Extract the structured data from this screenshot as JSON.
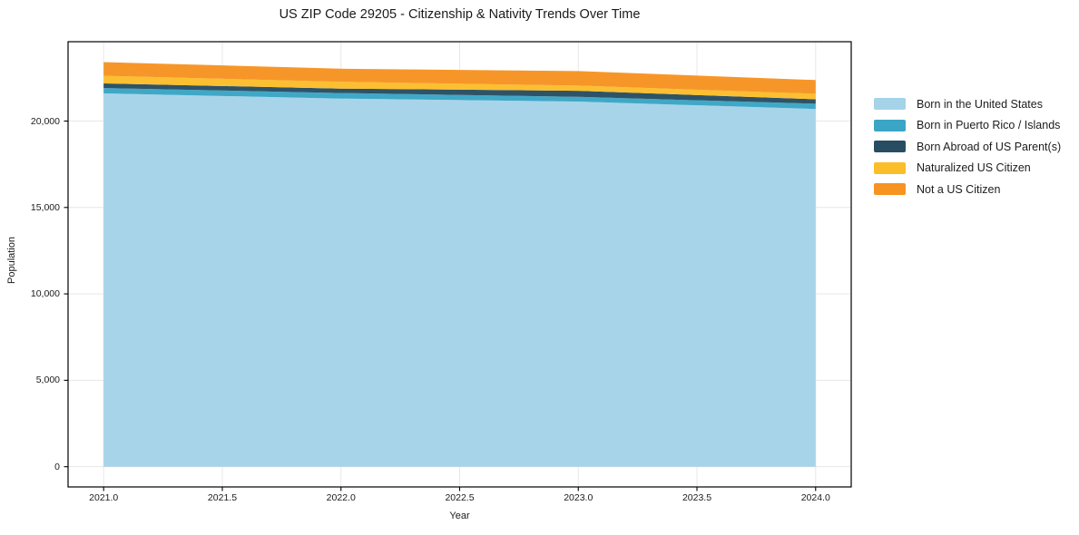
{
  "title": "US ZIP Code 29205 - Citizenship & Nativity Trends Over Time",
  "theme": {
    "background": "#ffffff",
    "grid_color": "#e7e7e7",
    "spine_color": "#000000",
    "tick_color": "#000000",
    "text_color": "#1a1a1a"
  },
  "chart_data": {
    "type": "area",
    "stacked": true,
    "title": "US ZIP Code 29205 - Citizenship & Nativity Trends Over Time",
    "xlabel": "Year",
    "ylabel": "Population",
    "x": [
      2021,
      2022,
      2023,
      2024
    ],
    "series": [
      {
        "name": "Born in the United States",
        "color": "#a5d3e8",
        "values": [
          21600,
          21300,
          21130,
          20700
        ]
      },
      {
        "name": "Born in Puerto Rico / Islands",
        "color": "#3aa5c5",
        "values": [
          310,
          320,
          270,
          300
        ]
      },
      {
        "name": "Born Abroad of US Parent(s)",
        "color": "#274d62",
        "values": [
          270,
          260,
          350,
          260
        ]
      },
      {
        "name": "Naturalized US Citizen",
        "color": "#fcbd2a",
        "values": [
          440,
          390,
          300,
          320
        ]
      },
      {
        "name": "Not a US Citizen",
        "color": "#f79321",
        "values": [
          790,
          760,
          840,
          790
        ]
      }
    ],
    "totals": [
      23410,
      23030,
      22890,
      22370
    ],
    "xlim": [
      2020.85,
      2024.15
    ],
    "ylim": [
      -1171,
      24591
    ],
    "xticks": [
      {
        "value": 2021.0,
        "label": "2021.0"
      },
      {
        "value": 2021.5,
        "label": "2021.5"
      },
      {
        "value": 2022.0,
        "label": "2022.0"
      },
      {
        "value": 2022.5,
        "label": "2022.5"
      },
      {
        "value": 2023.0,
        "label": "2023.0"
      },
      {
        "value": 2023.5,
        "label": "2023.5"
      },
      {
        "value": 2024.0,
        "label": "2024.0"
      }
    ],
    "yticks": [
      {
        "value": 0,
        "label": "0"
      },
      {
        "value": 5000,
        "label": "5,000"
      },
      {
        "value": 10000,
        "label": "10,000"
      },
      {
        "value": 15000,
        "label": "15,000"
      },
      {
        "value": 20000,
        "label": "20,000"
      }
    ],
    "grid": true,
    "legend_position": "right"
  }
}
